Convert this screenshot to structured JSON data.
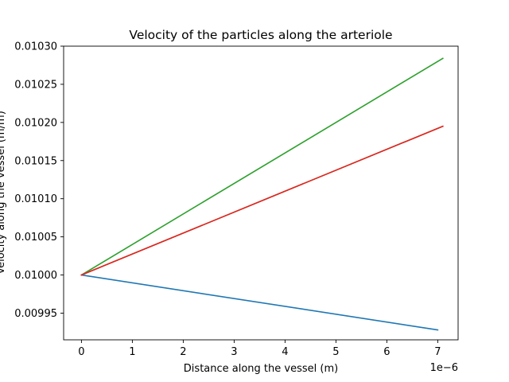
{
  "chart_data": {
    "type": "line",
    "title": "Velocity of the particles along the arteriole",
    "xlabel": "Distance along the vessel (m)",
    "ylabel": "Velocity along the vessel (m/m)",
    "x_offset_text": "1e−6",
    "xlim": [
      -3.5e-07,
      7.4e-06
    ],
    "ylim": [
      0.009915,
      0.0103
    ],
    "x_ticks": [
      0,
      1e-06,
      2e-06,
      3e-06,
      4e-06,
      5e-06,
      6e-06,
      7e-06
    ],
    "x_tick_labels": [
      "0",
      "1",
      "2",
      "3",
      "4",
      "5",
      "6",
      "7"
    ],
    "y_ticks": [
      0.00995,
      0.01,
      0.01005,
      0.0101,
      0.01015,
      0.0102,
      0.01025,
      0.0103
    ],
    "y_tick_labels": [
      "0.00995",
      "0.01000",
      "0.01005",
      "0.01010",
      "0.01015",
      "0.01020",
      "0.01025",
      "0.01030"
    ],
    "grid": false,
    "legend": "none",
    "series": [
      {
        "color": "#1f77b4",
        "x": [
          0,
          7e-06
        ],
        "y": [
          0.01,
          0.009928
        ]
      },
      {
        "color": "#2ca02c",
        "x": [
          0,
          7.1e-06
        ],
        "y": [
          0.01,
          0.010284
        ]
      },
      {
        "color": "#ff7f0e",
        "x": [
          0,
          7.1e-06
        ],
        "y": [
          0.01,
          0.010195
        ]
      },
      {
        "color": "#d62728",
        "x": [
          0,
          7.1e-06
        ],
        "y": [
          0.01,
          0.010195
        ]
      }
    ]
  }
}
